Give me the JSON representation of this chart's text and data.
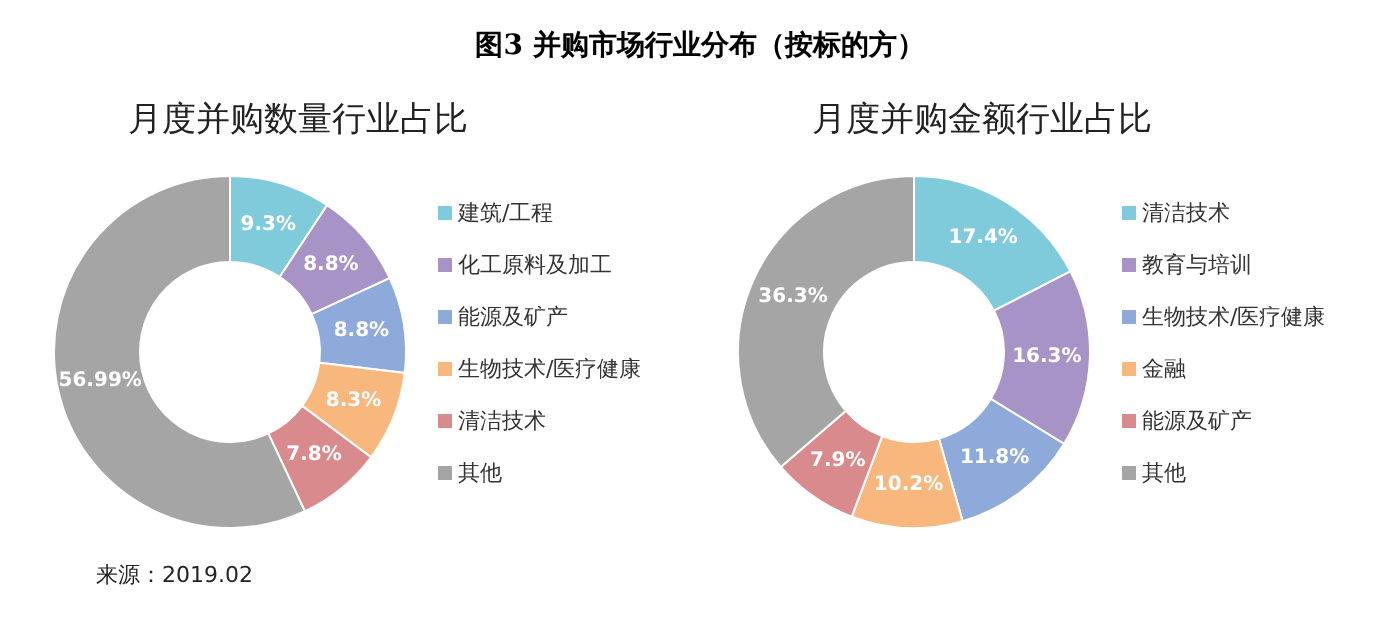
{
  "chart_data": [
    {
      "type": "donut",
      "title": "图3  并购市场行业分布（按标的方）",
      "subtitle": "月度并购数量行业占比",
      "categories": [
        "建筑/工程",
        "化工原料及加工",
        "能源及矿产",
        "生物技术/医疗健康",
        "清洁技术",
        "其他"
      ],
      "values": [
        9.3,
        8.8,
        8.8,
        8.3,
        7.8,
        56.99
      ],
      "value_labels": [
        "9.3%",
        "8.8%",
        "8.8%",
        "8.3%",
        "7.8%",
        "56.99%"
      ],
      "colors": [
        "#7fcbdc",
        "#a893c6",
        "#8eaadb",
        "#f8b77c",
        "#d98a8c",
        "#a5a5a5"
      ],
      "legend": "right",
      "annotations": [
        "来源：2019.02"
      ]
    },
    {
      "type": "donut",
      "title": "月度并购金额行业占比",
      "categories": [
        "清洁技术",
        "教育与培训",
        "生物技术/医疗健康",
        "金融",
        "能源及矿产",
        "其他"
      ],
      "values": [
        17.4,
        16.3,
        11.8,
        10.2,
        7.9,
        36.3
      ],
      "value_labels": [
        "17.4%",
        "16.3%",
        "11.8%",
        "10.2%",
        "7.9%",
        "36.3%"
      ],
      "colors": [
        "#7fcbdc",
        "#a893c6",
        "#8eaadb",
        "#f8b77c",
        "#d98a8c",
        "#a5a5a5"
      ],
      "legend": "right"
    }
  ]
}
